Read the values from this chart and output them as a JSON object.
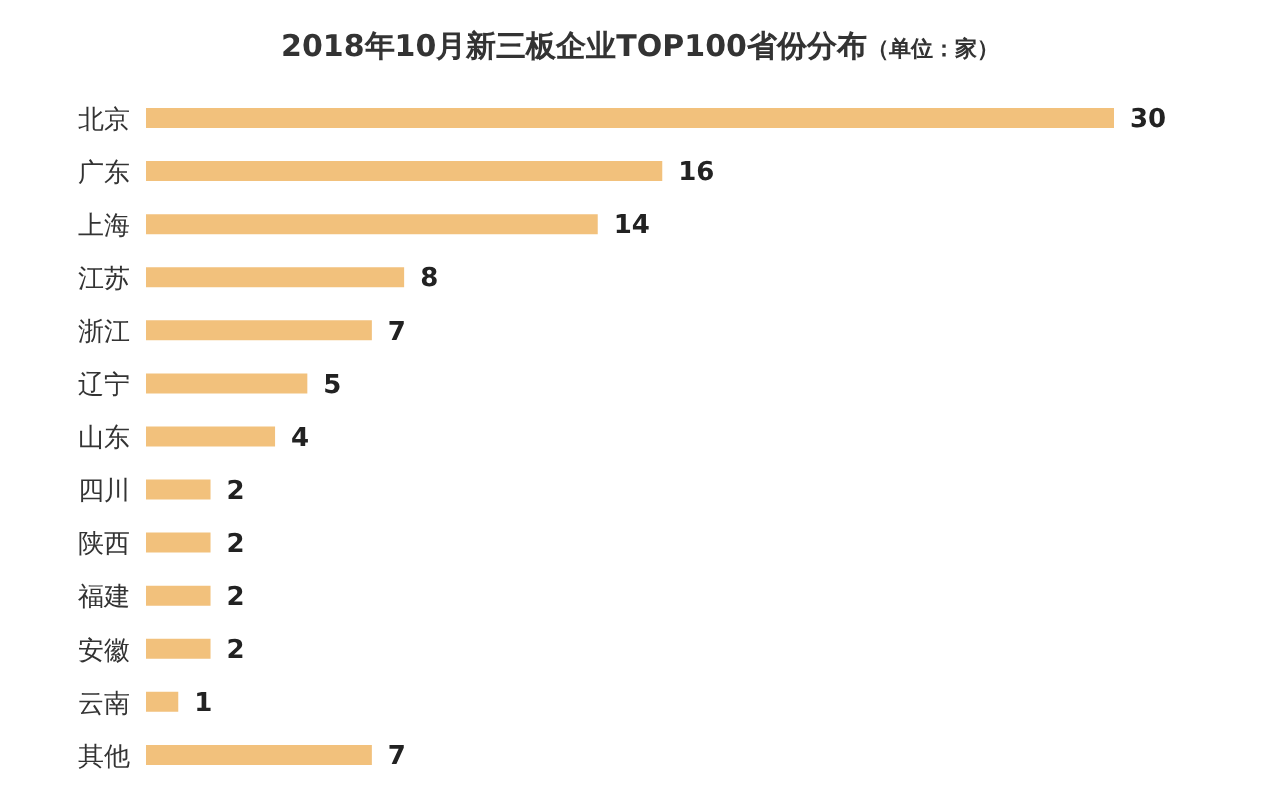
{
  "chart_data": {
    "type": "bar",
    "orientation": "horizontal",
    "title": "2018年10月新三板企业TOP100省份分布",
    "subtitle": "（单位：家）",
    "categories": [
      "北京",
      "广东",
      "上海",
      "江苏",
      "浙江",
      "辽宁",
      "山东",
      "四川",
      "陕西",
      "福建",
      "安徽",
      "云南",
      "其他"
    ],
    "values": [
      30,
      16,
      14,
      8,
      7,
      5,
      4,
      2,
      2,
      2,
      2,
      1,
      7
    ],
    "color": "#f2c17c",
    "data_labels": true,
    "grid": false,
    "legend": false
  }
}
